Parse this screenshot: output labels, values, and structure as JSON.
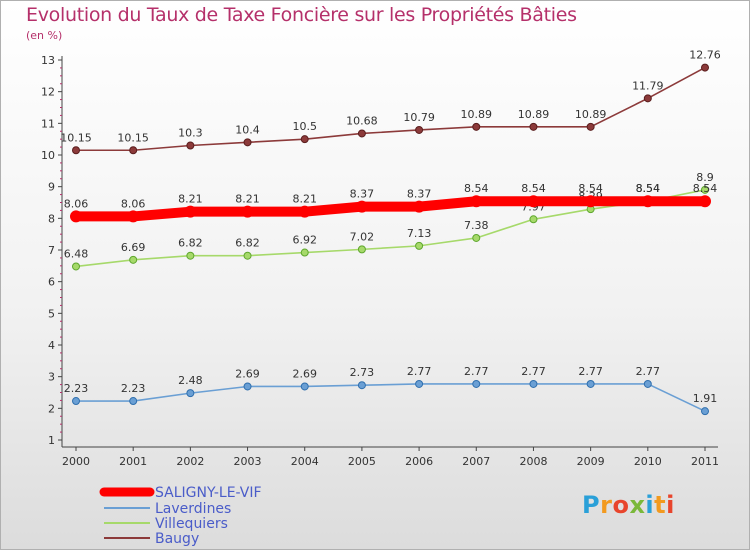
{
  "chart_data": {
    "type": "line",
    "title": "Evolution du Taux de Taxe Foncière sur les Propriétés Bâties",
    "ylabel": "(en %)",
    "xlabel": "",
    "ylim": [
      1,
      13
    ],
    "yticks": [
      1,
      2,
      3,
      4,
      5,
      6,
      7,
      8,
      9,
      10,
      11,
      12,
      13
    ],
    "categories": [
      "2000",
      "2001",
      "2002",
      "2003",
      "2004",
      "2005",
      "2006",
      "2007",
      "2008",
      "2009",
      "2010",
      "2011"
    ],
    "series": [
      {
        "name": "SALIGNY-LE-VIF",
        "color": "#ff0000",
        "values": [
          8.06,
          8.06,
          8.21,
          8.21,
          8.21,
          8.37,
          8.37,
          8.54,
          8.54,
          8.54,
          8.54,
          8.54
        ],
        "labels": [
          "8.06",
          "8.06",
          "8.21",
          "8.21",
          "8.21",
          "8.37",
          "8.37",
          "8.54",
          "8.54",
          "8.54",
          "8.54",
          "8.54"
        ]
      },
      {
        "name": "Laverdines",
        "color": "#6a9fd4",
        "values": [
          2.23,
          2.23,
          2.48,
          2.69,
          2.69,
          2.73,
          2.77,
          2.77,
          2.77,
          2.77,
          2.77,
          1.91
        ],
        "labels": [
          "2.23",
          "2.23",
          "2.48",
          "2.69",
          "2.69",
          "2.73",
          "2.77",
          "2.77",
          "2.77",
          "2.77",
          "2.77",
          "1.91"
        ]
      },
      {
        "name": "Villequiers",
        "color": "#a6d96a",
        "values": [
          6.48,
          6.69,
          6.82,
          6.82,
          6.92,
          7.02,
          7.13,
          7.38,
          7.97,
          8.29,
          8.54,
          8.9
        ],
        "labels": [
          "6.48",
          "6.69",
          "6.82",
          "6.82",
          "6.92",
          "7.02",
          "7.13",
          "7.38",
          "7.97",
          "8.29",
          "8.54",
          "8.9"
        ]
      },
      {
        "name": "Baugy",
        "color": "#8c3a3a",
        "values": [
          10.15,
          10.15,
          10.3,
          10.4,
          10.5,
          10.68,
          10.79,
          10.89,
          10.89,
          10.89,
          11.79,
          12.76
        ],
        "labels": [
          "10.15",
          "10.15",
          "10.3",
          "10.4",
          "10.5",
          "10.68",
          "10.79",
          "10.89",
          "10.89",
          "10.89",
          "11.79",
          "12.76"
        ]
      }
    ]
  },
  "logo": {
    "letters": [
      "P",
      "r",
      "o",
      "x",
      "i",
      "t",
      "i"
    ]
  }
}
